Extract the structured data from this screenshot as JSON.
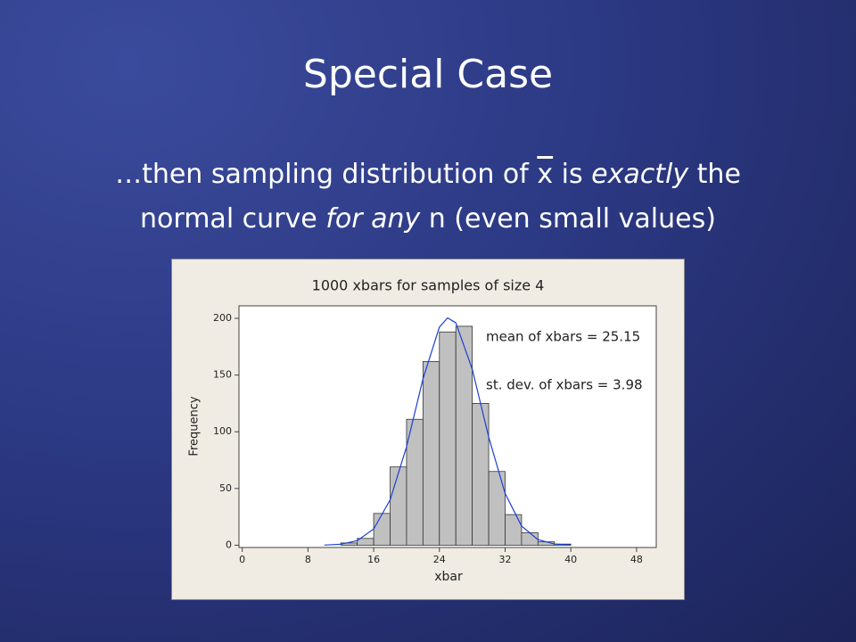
{
  "slide": {
    "title": "Special Case",
    "line1": [
      "…then sampling distribution of ",
      "x",
      " is ",
      "exactly",
      " the"
    ],
    "line2": [
      "normal curve ",
      "for any",
      " n (even small values)"
    ]
  },
  "chart_data": {
    "type": "histogram",
    "title": "1000 xbars for samples of size 4",
    "x_label": "xbar",
    "y_label": "Frequency",
    "bins": [
      12,
      14,
      16,
      18,
      20,
      22,
      24,
      26,
      28,
      30,
      32,
      34,
      36,
      38,
      40
    ],
    "counts": [
      2,
      6,
      28,
      69,
      111,
      162,
      188,
      193,
      125,
      65,
      27,
      11,
      3,
      1
    ],
    "color": "#c0c0c0",
    "curve": {
      "color": "#1a3fd6",
      "x": [
        10,
        12,
        14,
        16,
        18,
        20,
        22,
        24,
        25,
        26,
        28,
        30,
        32,
        34,
        36,
        38,
        40
      ],
      "y": [
        0.1,
        0.9,
        4.0,
        14.3,
        39.9,
        86.8,
        146.6,
        192.3,
        200.4,
        196.0,
        155.2,
        95.4,
        45.6,
        16.9,
        4.9,
        1.1,
        0.2
      ]
    },
    "annotations": [
      "mean of xbars = 25.15",
      "st. dev. of xbars = 3.98"
    ],
    "xlim": [
      -0.4,
      50.4
    ],
    "xticks": [
      0,
      8,
      16,
      24,
      32,
      40,
      48
    ],
    "ylim": [
      -2,
      211
    ],
    "yticks": [
      0,
      50,
      100,
      150,
      200
    ]
  }
}
